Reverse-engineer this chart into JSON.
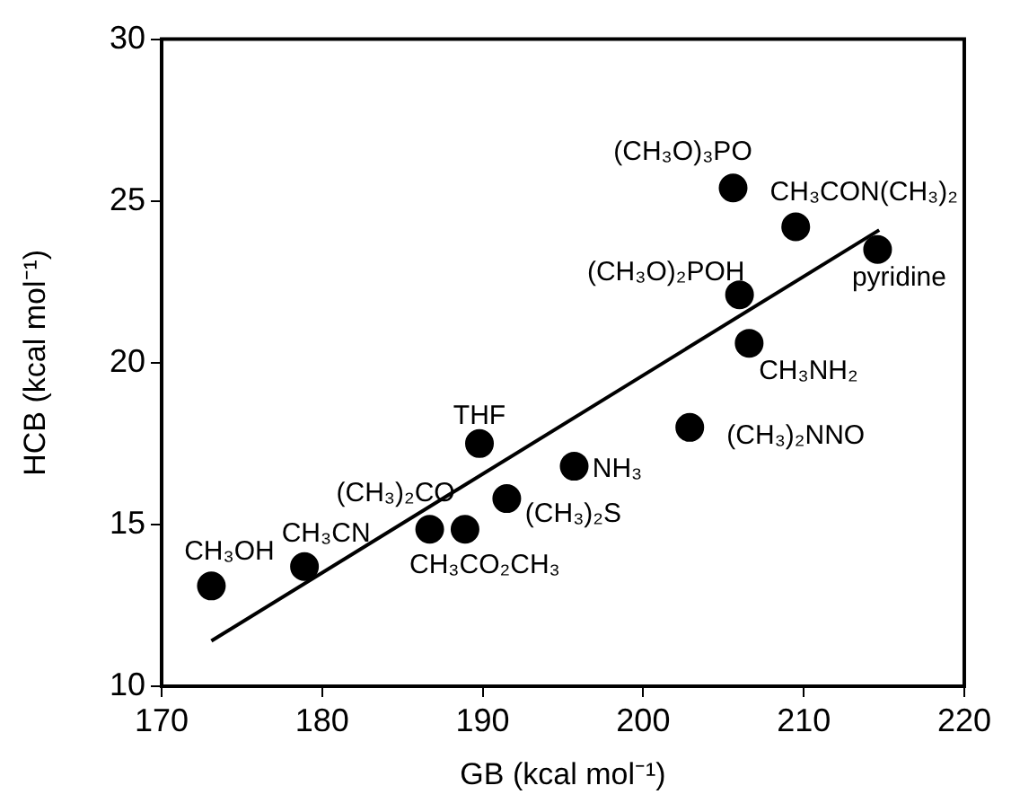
{
  "chart_data": {
    "type": "scatter",
    "xlabel": "GB (kcal mol⁻¹)",
    "ylabel": "HCB (kcal mol⁻¹)",
    "xlim": [
      170,
      220
    ],
    "xticks": [
      170,
      180,
      190,
      200,
      210,
      220
    ],
    "ylim": [
      10,
      30
    ],
    "yticks": [
      10,
      15,
      20,
      25,
      30
    ],
    "grid": false,
    "legend": false,
    "series": [
      {
        "type": "scatter",
        "color": "#000000",
        "marker": "circle",
        "x": [
          173.1,
          178.9,
          186.7,
          188.9,
          189.8,
          191.5,
          195.7,
          202.9,
          206.6,
          206.0,
          205.6,
          209.5,
          214.6
        ],
        "values": [
          13.1,
          13.7,
          14.85,
          14.85,
          17.5,
          15.8,
          16.8,
          18.0,
          20.6,
          22.1,
          25.4,
          24.2,
          23.5
        ]
      },
      {
        "type": "line",
        "color": "#000000",
        "marker": "none",
        "line_style": "solid",
        "x": [
          173.1,
          214.7
        ],
        "values": [
          11.4,
          24.1
        ]
      }
    ],
    "annotations": [
      {
        "text": "CH₃OH",
        "x": 173.1,
        "y": 13.1
      },
      {
        "text": "CH₃CN",
        "x": 178.9,
        "y": 13.7
      },
      {
        "text": "(CH₃)₂CO",
        "x": 186.7,
        "y": 14.85
      },
      {
        "text": "CH₃CO₂CH₃",
        "x": 188.9,
        "y": 14.85
      },
      {
        "text": "THF",
        "x": 189.8,
        "y": 17.5
      },
      {
        "text": "(CH₃)₂S",
        "x": 191.5,
        "y": 15.8
      },
      {
        "text": "NH₃",
        "x": 195.7,
        "y": 16.8
      },
      {
        "text": "(CH₃)₂NNO",
        "x": 202.9,
        "y": 18.0
      },
      {
        "text": "CH₃NH₂",
        "x": 206.6,
        "y": 20.6
      },
      {
        "text": "(CH₃O)₂POH",
        "x": 206.0,
        "y": 22.1
      },
      {
        "text": "(CH₃O)₃PO",
        "x": 205.6,
        "y": 25.4
      },
      {
        "text": "CH₃CON(CH₃)₂",
        "x": 209.5,
        "y": 24.2
      },
      {
        "text": "pyridine",
        "x": 214.6,
        "y": 23.5
      }
    ]
  }
}
